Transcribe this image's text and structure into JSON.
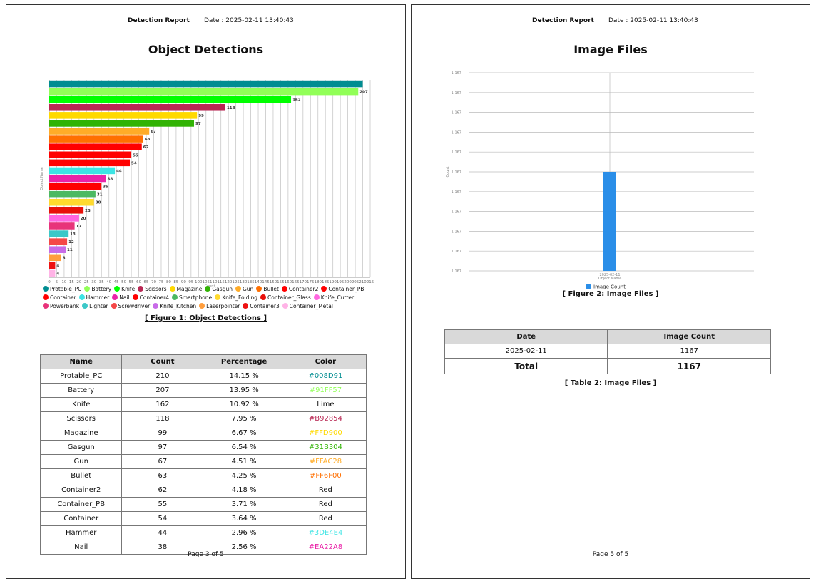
{
  "left_page": {
    "report_title": "Detection Report",
    "date_text": "Date : 2025-02-11 13:40:43",
    "section_title": "Object Detections",
    "figure_caption": "[ Figure 1: Object Detections ]",
    "footer": "Page 3 of 5",
    "table_headers": [
      "Name",
      "Count",
      "Percentage",
      "Color"
    ],
    "table_rows": [
      {
        "name": "Protable_PC",
        "count": "210",
        "percentage": "14.15 %",
        "color": "#008D91"
      },
      {
        "name": "Battery",
        "count": "207",
        "percentage": "13.95 %",
        "color": "#91FF57"
      },
      {
        "name": "Knife",
        "count": "162",
        "percentage": "10.92 %",
        "color": "Lime"
      },
      {
        "name": "Scissors",
        "count": "118",
        "percentage": "7.95 %",
        "color": "#B92854"
      },
      {
        "name": "Magazine",
        "count": "99",
        "percentage": "6.67 %",
        "color": "#FFD900"
      },
      {
        "name": "Gasgun",
        "count": "97",
        "percentage": "6.54 %",
        "color": "#31B304"
      },
      {
        "name": "Gun",
        "count": "67",
        "percentage": "4.51 %",
        "color": "#FFAC28"
      },
      {
        "name": "Bullet",
        "count": "63",
        "percentage": "4.25 %",
        "color": "#FF6F00"
      },
      {
        "name": "Container2",
        "count": "62",
        "percentage": "4.18 %",
        "color": "Red"
      },
      {
        "name": "Container_PB",
        "count": "55",
        "percentage": "3.71 %",
        "color": "Red"
      },
      {
        "name": "Container",
        "count": "54",
        "percentage": "3.64 %",
        "color": "Red"
      },
      {
        "name": "Hammer",
        "count": "44",
        "percentage": "2.96 %",
        "color": "#3DE4E4"
      },
      {
        "name": "Nail",
        "count": "38",
        "percentage": "2.56 %",
        "color": "#EA22A8"
      }
    ]
  },
  "right_page": {
    "report_title": "Detection Report",
    "date_text": "Date : 2025-02-11 13:40:43",
    "section_title": "Image Files",
    "figure_caption": "[ Figure 2: Image Files ]",
    "table_caption": "[ Table 2: Image Files ]",
    "footer": "Page 5 of 5",
    "table_headers": [
      "Date",
      "Image Count"
    ],
    "table_rows": [
      {
        "date": "2025-02-11",
        "count": "1167"
      }
    ],
    "total_label": "Total",
    "total_value": "1167"
  },
  "chart_data": [
    {
      "type": "bar",
      "orientation": "horizontal",
      "title": "",
      "xlabel": "Count",
      "ylabel": "Object Name",
      "xlim": [
        0,
        215
      ],
      "x_ticks": [
        0,
        5,
        10,
        15,
        20,
        25,
        30,
        35,
        40,
        45,
        50,
        55,
        60,
        65,
        70,
        75,
        80,
        85,
        90,
        95,
        100,
        105,
        110,
        115,
        120,
        125,
        130,
        135,
        140,
        145,
        150,
        155,
        160,
        165,
        170,
        175,
        180,
        185,
        190,
        195,
        200,
        205,
        210,
        215
      ],
      "grid": true,
      "legend_position": "bottom",
      "categories": [
        "Protable_PC",
        "Battery",
        "Knife",
        "Scissors",
        "Magazine",
        "Gasgun",
        "Gun",
        "Bullet",
        "Container2",
        "Container_PB",
        "Container",
        "Hammer",
        "Nail",
        "Container4",
        "Smartphone",
        "Knife_Folding",
        "Container_Glass",
        "Knife_Cutter",
        "Powerbank",
        "Lighter",
        "Screwdriver",
        "Knife_Kitchen",
        "Laserpointer",
        "Container3",
        "Container_Metal"
      ],
      "values": [
        210,
        207,
        162,
        118,
        99,
        97,
        67,
        63,
        62,
        55,
        54,
        44,
        38,
        35,
        31,
        30,
        23,
        20,
        17,
        13,
        12,
        11,
        8,
        4,
        4
      ],
      "data_labels": [
        "",
        "207",
        "162",
        "118",
        "99",
        "97",
        "67",
        "63",
        "62",
        "55",
        "54",
        "44",
        "38",
        "35",
        "31",
        "30",
        "23",
        "20",
        "17",
        "13",
        "12",
        "11",
        "8",
        "4",
        "4"
      ],
      "colors": [
        "#008D91",
        "#91FF57",
        "#00FF00",
        "#B92854",
        "#FFD900",
        "#31B304",
        "#FFAC28",
        "#FF6F00",
        "#FF0000",
        "#FF0000",
        "#FF0000",
        "#3DE4E4",
        "#EA22A8",
        "#FF0000",
        "#4CB962",
        "#FFDA2E",
        "#E8100A",
        "#FF66E0",
        "#E8337A",
        "#3CC8C8",
        "#F54848",
        "#C86BE8",
        "#FF9E3D",
        "#EE1111",
        "#FFB3E6"
      ]
    },
    {
      "type": "bar",
      "title": "",
      "xlabel": "Object Name",
      "ylabel": "Count",
      "categories": [
        "2025-02-11"
      ],
      "y_tick_labels": [
        "1,167",
        "1,167",
        "1,167",
        "1,167",
        "1,167",
        "1,167",
        "1,167",
        "1,167",
        "1,167",
        "1,167",
        "1,167"
      ],
      "series": [
        {
          "name": "Image Count",
          "values": [
            1167
          ],
          "color": "#2A8EE8"
        }
      ],
      "grid": true,
      "legend_position": "bottom"
    }
  ]
}
